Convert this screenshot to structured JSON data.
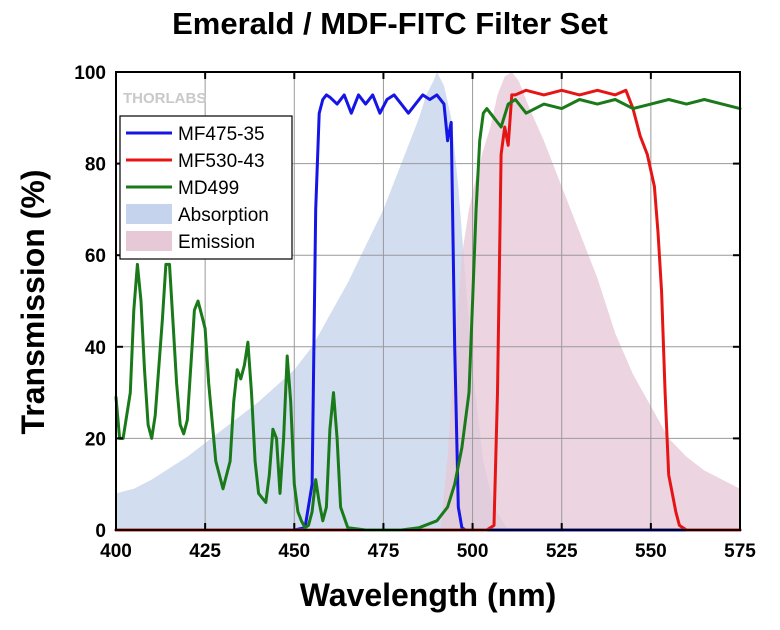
{
  "chart_data": {
    "type": "line",
    "title": "Emerald / MDF-FITC Filter Set",
    "xlabel": "Wavelength (nm)",
    "ylabel": "Transmission (%)",
    "xlim": [
      400,
      575
    ],
    "ylim": [
      0,
      100
    ],
    "xticks": [
      400,
      425,
      450,
      475,
      500,
      525,
      550,
      575
    ],
    "yticks": [
      0,
      20,
      40,
      60,
      80,
      100
    ],
    "grid": true,
    "legend_position": "top-left",
    "watermark": "THORLABS",
    "series": [
      {
        "name": "MF475-35",
        "kind": "line",
        "color": "#1515e6",
        "x": [
          400,
          450,
          453,
          455,
          456,
          457,
          458,
          459,
          460,
          462,
          464,
          466,
          468,
          470,
          472,
          474,
          476,
          478,
          480,
          482,
          484,
          486,
          488,
          490,
          492,
          493,
          494,
          495,
          496,
          497,
          498,
          575
        ],
        "y": [
          0,
          0,
          0.5,
          10,
          70,
          91,
          94,
          95,
          94.5,
          93,
          95,
          91,
          95,
          93,
          95,
          91,
          94,
          95,
          93,
          91,
          93,
          95,
          94,
          95,
          93,
          85,
          89,
          40,
          5,
          0.5,
          0,
          0
        ]
      },
      {
        "name": "MF530-43",
        "kind": "line",
        "color": "#e61515",
        "x": [
          400,
          504,
          506,
          507,
          508,
          509,
          510,
          511,
          512,
          515,
          520,
          525,
          530,
          535,
          540,
          543,
          545,
          547,
          549,
          551,
          552,
          553,
          554,
          555,
          556,
          557,
          558,
          559,
          560,
          575
        ],
        "y": [
          0,
          0,
          1,
          30,
          82,
          88,
          84,
          95,
          95,
          96,
          95,
          96,
          95,
          96,
          95,
          96,
          92,
          86,
          82,
          75,
          65,
          52,
          30,
          12,
          8,
          4,
          1,
          0.5,
          0,
          0
        ]
      },
      {
        "name": "MD499",
        "kind": "line",
        "color": "#1a7a1a",
        "x": [
          400,
          401,
          402,
          404,
          405,
          406,
          407,
          408,
          409,
          410,
          411,
          413,
          414,
          415,
          416,
          417,
          418,
          419,
          420,
          421,
          422,
          423,
          424,
          425,
          426,
          428,
          430,
          432,
          433,
          434,
          435,
          436,
          437,
          438,
          439,
          440,
          442,
          443,
          444,
          445,
          446,
          447,
          448,
          449,
          450,
          451,
          452,
          453,
          454,
          455,
          456,
          457,
          458,
          459,
          460,
          461,
          462,
          463,
          465,
          470,
          480,
          485,
          490,
          493,
          495,
          497,
          499,
          500,
          501,
          502,
          503,
          504,
          506,
          508,
          510,
          512,
          515,
          520,
          525,
          530,
          535,
          540,
          545,
          550,
          555,
          560,
          565,
          570,
          575
        ],
        "y": [
          29,
          20,
          20,
          30,
          48,
          58,
          50,
          35,
          23,
          20,
          25,
          46,
          58,
          58,
          45,
          32,
          23,
          21,
          24,
          36,
          48,
          50,
          47,
          44,
          32,
          15,
          9,
          15,
          28,
          35,
          33,
          36,
          41,
          30,
          15,
          8,
          6,
          12,
          22,
          20,
          8,
          20,
          38,
          28,
          10,
          4,
          2,
          0.5,
          1,
          4,
          11,
          6,
          2,
          5,
          22,
          30,
          20,
          5,
          0.5,
          0,
          0,
          0.5,
          2,
          5,
          10,
          18,
          30,
          50,
          70,
          85,
          91,
          92,
          90,
          88,
          93,
          94,
          91,
          93,
          92,
          94,
          93,
          94,
          92,
          93,
          94,
          93,
          94,
          93,
          92
        ]
      },
      {
        "name": "Absorption",
        "kind": "area",
        "color": "#c5d3ec",
        "x": [
          400,
          405,
          410,
          420,
          430,
          440,
          450,
          455,
          460,
          465,
          470,
          475,
          480,
          485,
          487,
          489,
          490,
          492,
          494,
          496,
          498,
          500,
          503,
          506,
          510
        ],
        "y": [
          8,
          9,
          11,
          16,
          22,
          28,
          35,
          40,
          47,
          54,
          62,
          70,
          80,
          90,
          95,
          98,
          100,
          97,
          90,
          75,
          55,
          35,
          15,
          5,
          0
        ]
      },
      {
        "name": "Emission",
        "kind": "area",
        "color": "#e7c8d7",
        "x": [
          491,
          493,
          495,
          497,
          499,
          501,
          503,
          505,
          507,
          509,
          511,
          513,
          516,
          520,
          525,
          530,
          535,
          540,
          545,
          550,
          555,
          560,
          565,
          570,
          575
        ],
        "y": [
          0,
          16,
          40,
          60,
          70,
          77,
          83,
          88,
          95,
          99,
          100,
          98,
          92,
          85,
          75,
          65,
          55,
          43,
          34,
          27,
          20,
          16,
          13,
          11,
          9
        ]
      }
    ]
  }
}
